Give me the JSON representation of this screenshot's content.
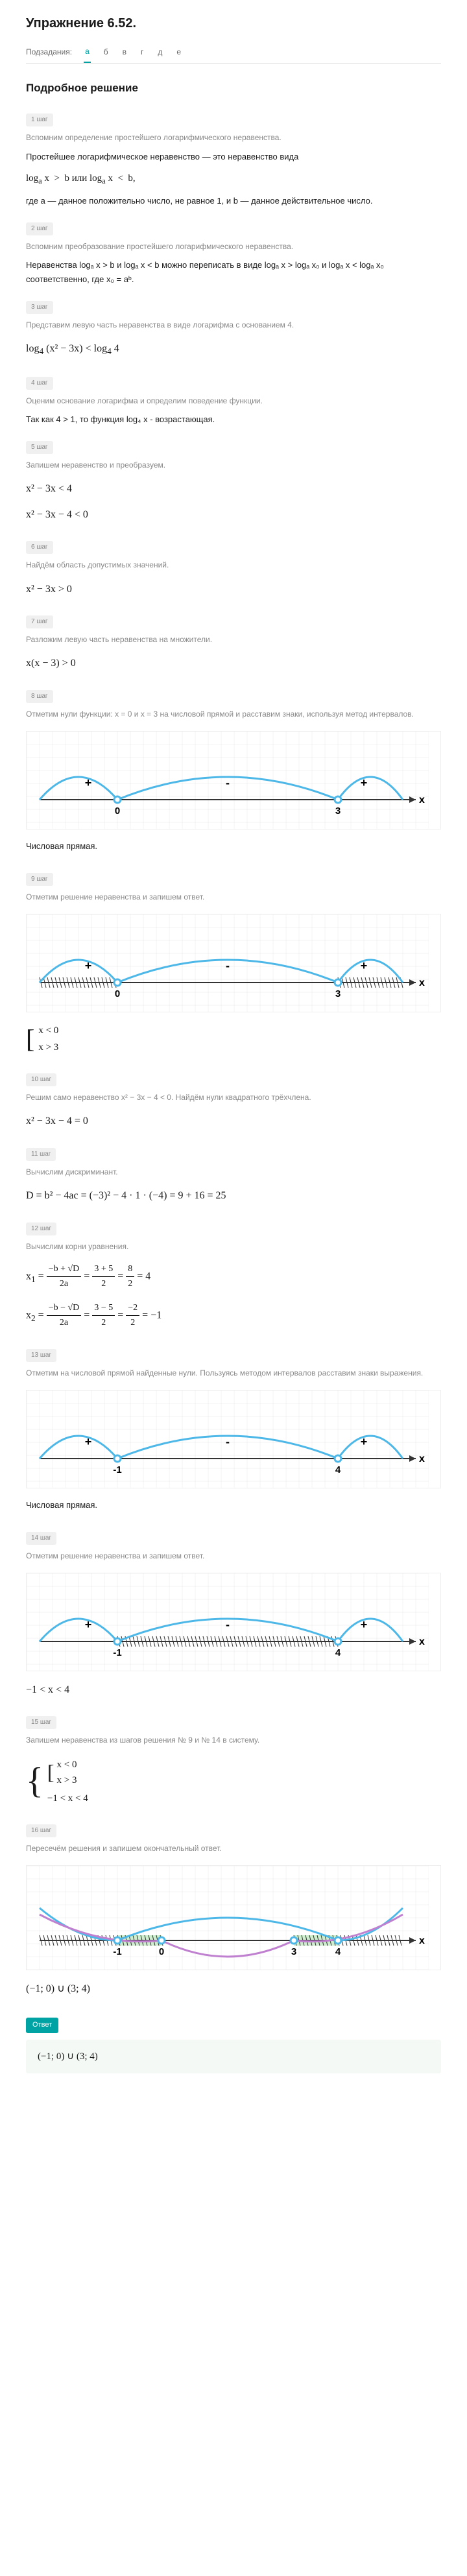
{
  "title": "Упражнение 6.52.",
  "subtasks_label": "Подзадания:",
  "subtasks": [
    "а",
    "б",
    "в",
    "г",
    "д",
    "е"
  ],
  "active_subtask": 0,
  "section_title": "Подробное решение",
  "steps": [
    {
      "badge": "1 шаг",
      "desc": "Вспомним определение простейшего логарифмического неравенства."
    },
    {
      "badge": "2 шаг",
      "desc": "Вспомним преобразование простейшего логарифмического неравенства."
    },
    {
      "badge": "3 шаг",
      "desc": "Представим левую часть неравенства в виде логарифма с основанием 4."
    },
    {
      "badge": "4 шаг",
      "desc": "Оценим основание логарифма и определим поведение функции."
    },
    {
      "badge": "5 шаг",
      "desc": "Запишем неравенство и преобразуем."
    },
    {
      "badge": "6 шаг",
      "desc": "Найдём область допустимых значений."
    },
    {
      "badge": "7 шаг",
      "desc": "Разложим левую часть неравенства на множители."
    },
    {
      "badge": "8 шаг",
      "desc": "Отметим нули функции: x = 0 и x = 3 на числовой прямой и расставим знаки, используя метод интервалов."
    },
    {
      "badge": "9 шаг",
      "desc": "Отметим решение неравенства и запишем ответ."
    },
    {
      "badge": "10 шаг",
      "desc": "Решим само неравенство x² − 3x − 4 < 0. Найдём нули квадратного трёхчлена."
    },
    {
      "badge": "11 шаг",
      "desc": "Вычислим дискриминант."
    },
    {
      "badge": "12 шаг",
      "desc": "Вычислим корни уравнения."
    },
    {
      "badge": "13 шаг",
      "desc": "Отметим на числовой прямой найденные нули. Пользуясь методом интервалов расставим знаки выражения."
    },
    {
      "badge": "14 шаг",
      "desc": "Отметим решение неравенства и запишем ответ."
    },
    {
      "badge": "15 шаг",
      "desc": "Запишем неравенства из шагов решения № 9 и № 14 в систему."
    },
    {
      "badge": "16 шаг",
      "desc": "Пересечём решения и запишем окончательный ответ."
    }
  ],
  "text": {
    "def1": "Простейшее логарифмическое неравенство — это неравенство вида",
    "def2": "где a — данное положительно число, не равное 1, и b — данное действительное число.",
    "transform": "Неравенства logₐ x > b и logₐ x < b можно переписать в виде logₐ x > logₐ x₀ и logₐ x < logₐ x₀ соответственно, где x₀ = aᵇ.",
    "behavior": "Так как 4 > 1, то функция log₄ x - возрастающая.",
    "caption": "Числовая прямая.",
    "answer_label": "Ответ"
  },
  "formulas": {
    "log_def": "log<sub>a</sub> x &nbsp;&gt;&nbsp; b или log<sub>a</sub> x &nbsp;&lt;&nbsp; b,",
    "step3": "log<sub>4</sub> (x² − 3x) &lt; log<sub>4</sub> 4",
    "step5a": "x² − 3x &lt; 4",
    "step5b": "x² − 3x − 4 &lt; 0",
    "step6": "x² − 3x &gt; 0",
    "step7": "x(x − 3) &gt; 0",
    "step9_sys": [
      "x &lt; 0",
      "x &gt; 3"
    ],
    "step10": "x² − 3x − 4 = 0",
    "step11": "D = b² − 4ac = (−3)² − 4 · 1 · (−4) = 9 + 16 = 25",
    "step14": "−1 &lt; x &lt; 4",
    "step15_sys": [
      "x &lt; 0",
      "x &gt; 3",
      "−1 &lt; x &lt; 4"
    ],
    "final1": "(−1; 0) ∪ (3; 4)",
    "final2": "(−1; 0) ∪ (3; 4)"
  },
  "graphs": {
    "g1": {
      "points": [
        0,
        3
      ],
      "labels": [
        "0",
        "3"
      ],
      "signs": [
        "+",
        "-",
        "+"
      ],
      "hatch": [],
      "fill": [],
      "color": "#4db8e8"
    },
    "g2": {
      "points": [
        0,
        3
      ],
      "labels": [
        "0",
        "3"
      ],
      "signs": [
        "+",
        "-",
        "+"
      ],
      "hatch": [
        [
          -60,
          0
        ],
        [
          3,
          60
        ]
      ],
      "fill": [],
      "color": "#4db8e8"
    },
    "g3": {
      "points": [
        -1,
        4
      ],
      "labels": [
        "-1",
        "4"
      ],
      "signs": [
        "+",
        "-",
        "+"
      ],
      "hatch": [],
      "fill": [],
      "color": "#4db8e8"
    },
    "g4": {
      "points": [
        -1,
        4
      ],
      "labels": [
        "-1",
        "4"
      ],
      "signs": [
        "+",
        "-",
        "+"
      ],
      "hatch": [
        [
          -1,
          4
        ]
      ],
      "fill": [],
      "color": "#4db8e8"
    },
    "g5": {
      "points": [
        -1,
        0,
        3,
        4
      ],
      "labels": [
        "-1",
        "0",
        "3",
        "4"
      ],
      "signs": [],
      "hatch": [
        [
          -60,
          0
        ],
        [
          3,
          60
        ]
      ],
      "fill": [
        [
          -1,
          0
        ],
        [
          3,
          4
        ]
      ],
      "curves": true,
      "color": "#4db8e8"
    }
  },
  "colors": {
    "curve": "#4db8e8",
    "grid": "#e8e8e8",
    "axis": "#333",
    "fill": "#b8e8b8",
    "purple": "#c080d0"
  }
}
